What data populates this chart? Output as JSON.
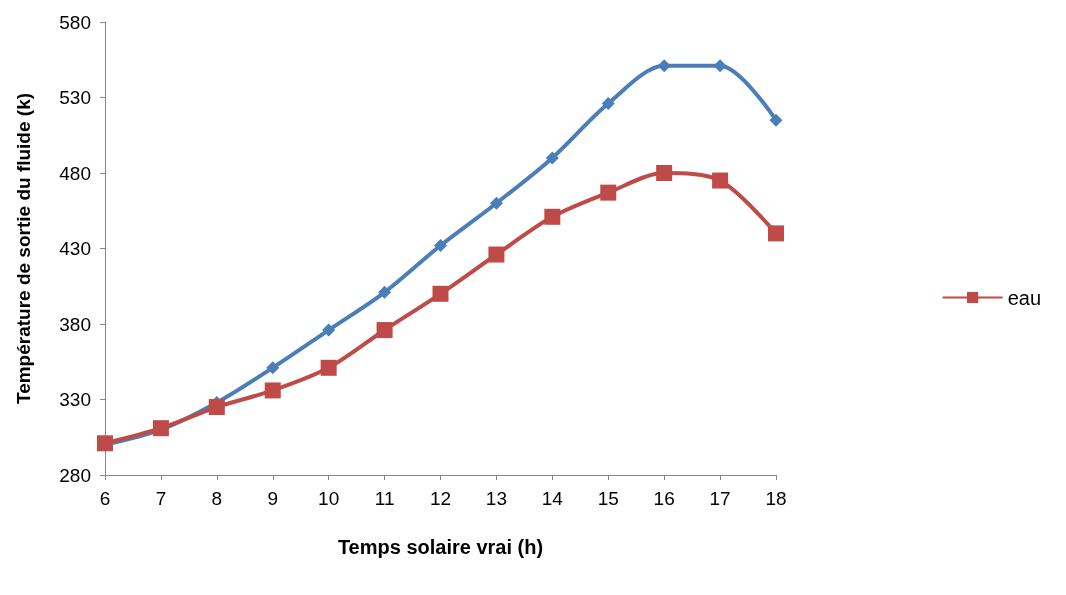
{
  "chart_data": {
    "type": "line",
    "xlabel": "Temps solaire vrai (h)",
    "ylabel": "Température de sortie du fluide (k)",
    "categories": [
      "6",
      "7",
      "8",
      "9",
      "10",
      "11",
      "12",
      "13",
      "14",
      "15",
      "16",
      "17",
      "18"
    ],
    "series": [
      {
        "color": "#4a7ebb",
        "marker": "diamond",
        "values": [
          300,
          310,
          328,
          351,
          376,
          401,
          432,
          460,
          490,
          526,
          551,
          551,
          515
        ]
      },
      {
        "name": "eau",
        "color": "#be4b48",
        "marker": "square",
        "values": [
          301,
          311,
          325,
          336,
          351,
          376,
          400,
          426,
          451,
          467,
          480,
          475,
          440
        ]
      }
    ],
    "ylim": [
      280,
      580
    ],
    "yticks": [
      280,
      330,
      380,
      430,
      480,
      530,
      580
    ],
    "grid": false,
    "legend": "right"
  }
}
